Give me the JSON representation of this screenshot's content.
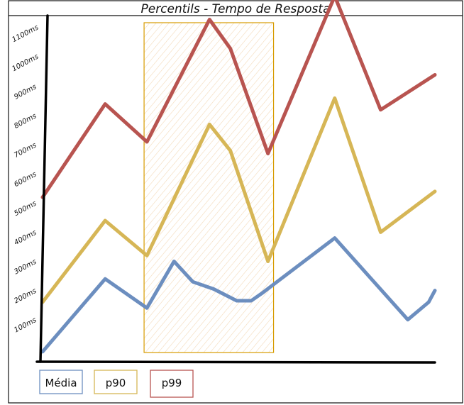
{
  "chart_data": {
    "type": "line",
    "title": "Percentils - Tempo de Resposta",
    "xlabel": "",
    "ylabel": "",
    "y_ticks": [
      "100ms",
      "200ms",
      "300ms",
      "400ms",
      "500ms",
      "600ms",
      "700ms",
      "800ms",
      "900ms",
      "1000ms",
      "1100ms"
    ],
    "ylim": [
      0,
      1100
    ],
    "x": [
      0,
      3,
      5,
      6.5,
      7.5,
      8.5,
      9.5,
      10.8,
      11.3,
      15,
      17.8,
      18.8
    ],
    "xlim": [
      0,
      18.8
    ],
    "highlight_x_range": [
      5,
      11
    ],
    "legend_placement": "bottom-left",
    "series": [
      {
        "name": "Média",
        "color": "#6c8ebf",
        "x": [
          0,
          3,
          5,
          6.3,
          7.2,
          8.2,
          9.3,
          10,
          10.5,
          14,
          17.5,
          18.5,
          18.8
        ],
        "values": [
          10,
          260,
          160,
          320,
          250,
          225,
          185,
          185,
          210,
          400,
          120,
          180,
          220
        ]
      },
      {
        "name": "p90",
        "color": "#d6b656",
        "x": [
          0,
          3,
          5,
          8,
          9,
          10.8,
          14,
          16.2,
          18.8
        ],
        "values": [
          180,
          460,
          340,
          790,
          700,
          320,
          880,
          420,
          560
        ]
      },
      {
        "name": "p99",
        "color": "#b85450",
        "x": [
          0,
          3,
          5,
          8,
          9,
          10.8,
          14,
          16.2,
          18.8
        ],
        "values": [
          540,
          860,
          730,
          1150,
          1050,
          690,
          1230,
          840,
          960
        ]
      }
    ]
  }
}
